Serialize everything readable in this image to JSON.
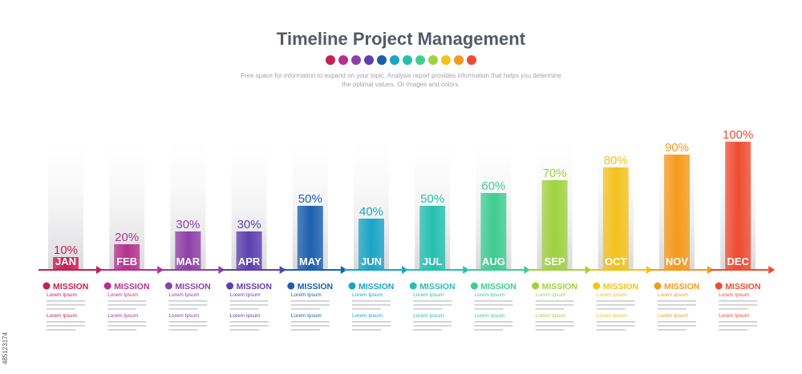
{
  "header": {
    "title": "Timeline Project Management",
    "subtitle": "Free space for information to expand on your topic. Analysis report provides information that helps you determine the optimal values. Or images and colors."
  },
  "palette": [
    "#c4214f",
    "#b5318e",
    "#8e3fa8",
    "#5d3fb0",
    "#1b5fae",
    "#1aa4c7",
    "#25c0b0",
    "#3fcc93",
    "#9fd23f",
    "#f2c21d",
    "#f59a1c",
    "#ef4b32"
  ],
  "items": {
    "mission_label": "MISSION",
    "lorem_label": "Lorem Ipsum"
  },
  "watermark_id": "485123174",
  "chart_data": {
    "type": "bar",
    "title": "Timeline Project Management",
    "categories": [
      "JAN",
      "FEB",
      "MAR",
      "APR",
      "MAY",
      "JUN",
      "JUL",
      "AUG",
      "SEP",
      "OCT",
      "NOV",
      "DEC"
    ],
    "values": [
      10,
      20,
      30,
      30,
      50,
      40,
      50,
      60,
      70,
      80,
      90,
      100
    ],
    "value_labels": [
      "10%",
      "20%",
      "30%",
      "30%",
      "50%",
      "40%",
      "50%",
      "60%",
      "70%",
      "80%",
      "90%",
      "100%"
    ],
    "colors": [
      "#c4214f",
      "#b5318e",
      "#8e3fa8",
      "#5d3fb0",
      "#1b5fae",
      "#1aa4c7",
      "#25c0b0",
      "#3fcc93",
      "#9fd23f",
      "#f2c21d",
      "#f59a1c",
      "#ef4b32"
    ],
    "ylim": [
      0,
      100
    ],
    "grid": false,
    "legend": "none"
  }
}
